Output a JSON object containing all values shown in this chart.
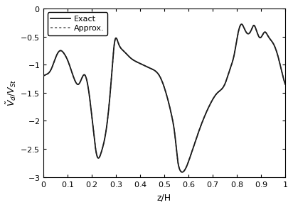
{
  "title": "",
  "xlabel": "z/H",
  "ylabel": "$\\tilde{V}_{d}/V_{St}$",
  "xlim": [
    0,
    1
  ],
  "ylim": [
    -3,
    0
  ],
  "yticks": [
    0,
    -0.5,
    -1,
    -1.5,
    -2,
    -2.5,
    -3
  ],
  "xticks": [
    0,
    0.1,
    0.2,
    0.3,
    0.4,
    0.5,
    0.6,
    0.7,
    0.8,
    0.9,
    1
  ],
  "line_color_exact": "#1a1a1a",
  "line_color_approx": "#555555",
  "legend_entries": [
    "Exact",
    "Approx."
  ],
  "legend_loc": "upper left",
  "background_color": "#ffffff",
  "figsize": [
    4.12,
    2.92
  ],
  "dpi": 100
}
